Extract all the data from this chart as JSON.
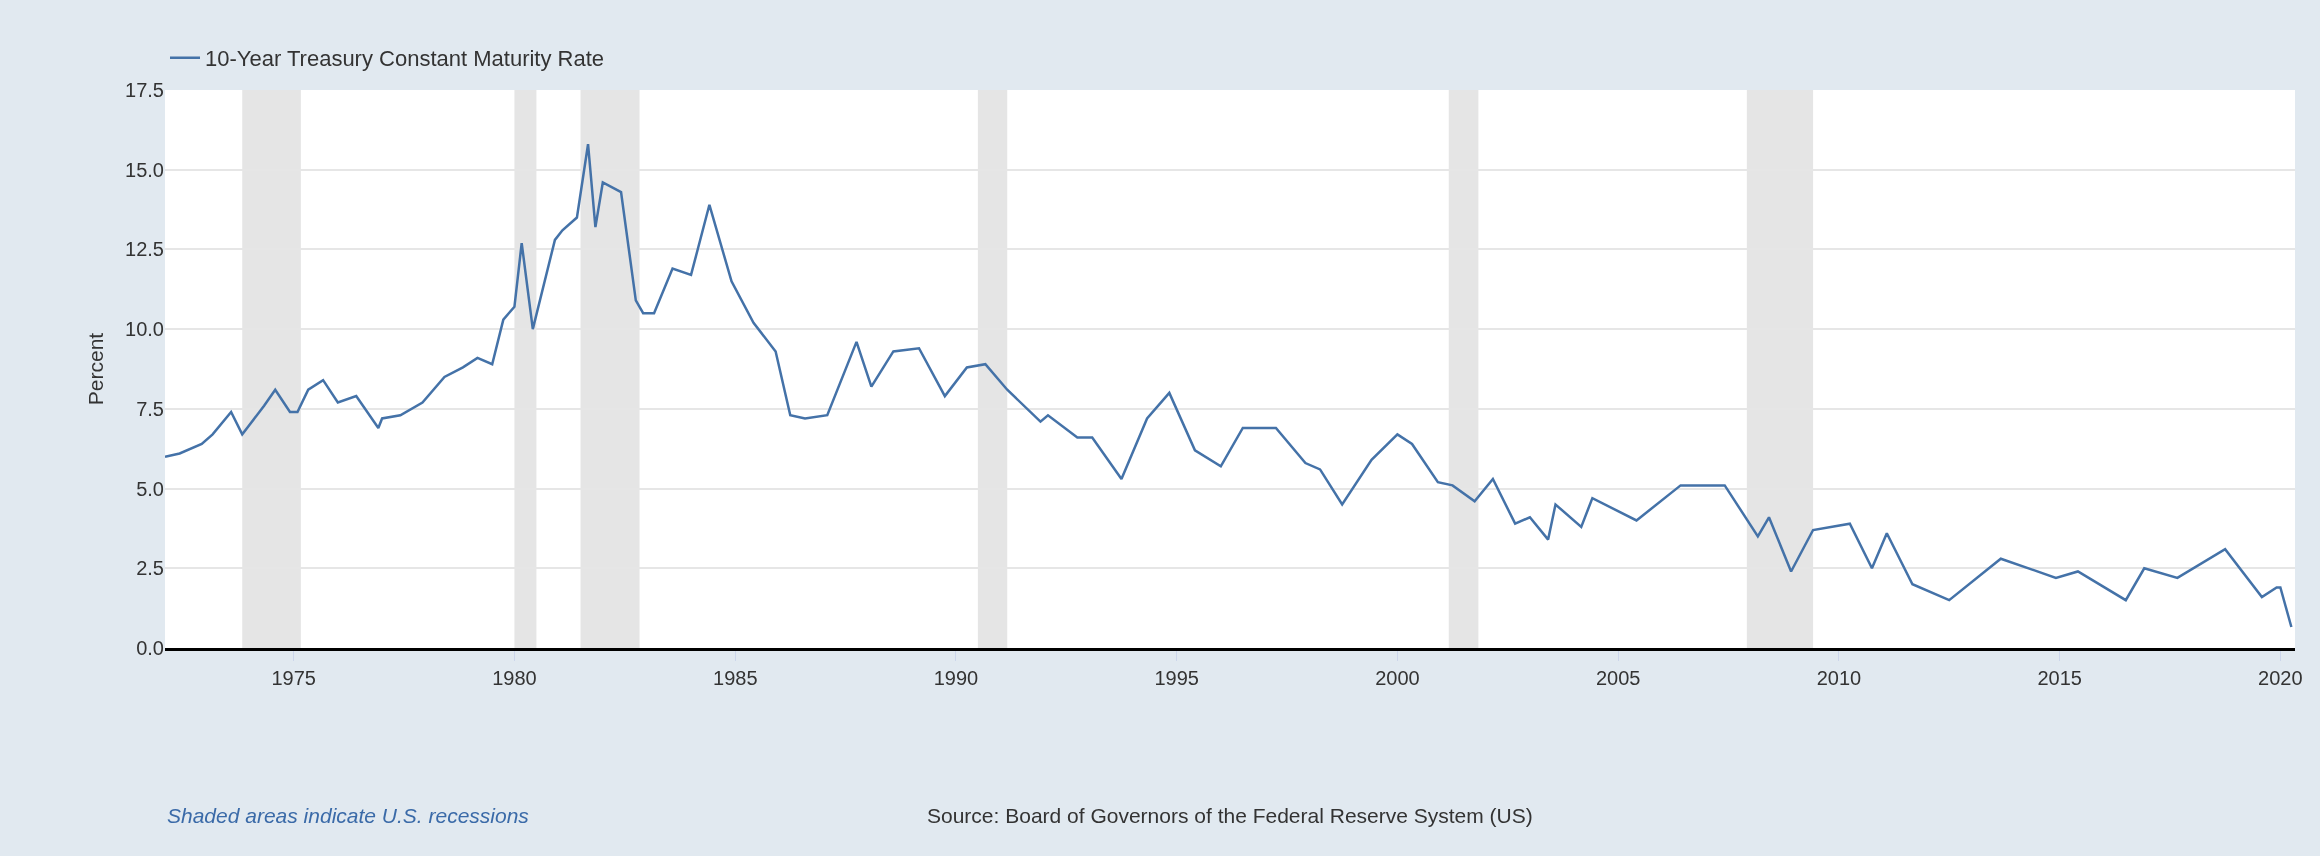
{
  "chart_data": {
    "type": "line",
    "ylabel": "Percent",
    "legend": "top left",
    "grid": "y",
    "marker": "none",
    "line_style": "solid",
    "x": [
      "1972-02",
      "1972-06",
      "1972-12",
      "1973-03",
      "1973-08",
      "1973-11",
      "1974-01",
      "1974-05",
      "1974-08",
      "1974-12",
      "1975-02",
      "1975-05",
      "1975-09",
      "1976-01",
      "1976-06",
      "1976-12",
      "1977-01",
      "1977-06",
      "1977-12",
      "1978-06",
      "1978-11",
      "1979-03",
      "1979-07",
      "1979-10",
      "1980-01",
      "1980-03",
      "1980-06",
      "1980-12",
      "1981-02",
      "1981-06",
      "1981-09",
      "1981-11",
      "1982-01",
      "1982-06",
      "1982-10",
      "1982-12",
      "1983-03",
      "1983-08",
      "1984-01",
      "1984-06",
      "1984-12",
      "1985-06",
      "1985-12",
      "1986-04",
      "1986-08",
      "1987-02",
      "1987-10",
      "1988-02",
      "1988-08",
      "1989-03",
      "1989-10",
      "1990-04",
      "1990-09",
      "1991-03",
      "1991-12",
      "1992-02",
      "1992-10",
      "1993-02",
      "1993-10",
      "1994-05",
      "1994-11",
      "1995-06",
      "1996-01",
      "1996-07",
      "1997-04",
      "1997-12",
      "1998-04",
      "1998-10",
      "1999-06",
      "2000-01",
      "2000-05",
      "2000-12",
      "2001-04",
      "2001-10",
      "2002-03",
      "2002-09",
      "2003-01",
      "2003-06",
      "2003-08",
      "2004-03",
      "2004-06",
      "2005-06",
      "2006-06",
      "2007-06",
      "2008-03",
      "2008-06",
      "2008-12",
      "2009-06",
      "2010-04",
      "2010-10",
      "2011-02",
      "2011-09",
      "2012-07",
      "2013-09",
      "2014-12",
      "2015-06",
      "2016-07",
      "2016-12",
      "2017-09",
      "2018-10",
      "2019-08",
      "2019-12",
      "2020-01",
      "2020-04"
    ],
    "series": [
      {
        "name": "10-Year Treasury Constant Maturity Rate",
        "color": "#4472a8",
        "values": [
          6.0,
          6.1,
          6.4,
          6.7,
          7.4,
          6.7,
          7.0,
          7.6,
          8.1,
          7.4,
          7.4,
          8.1,
          8.4,
          7.7,
          7.9,
          6.9,
          7.2,
          7.3,
          7.7,
          8.5,
          8.8,
          9.1,
          8.9,
          10.3,
          10.7,
          12.7,
          10.0,
          12.8,
          13.1,
          13.5,
          15.8,
          13.2,
          14.6,
          14.3,
          10.9,
          10.5,
          10.5,
          11.9,
          11.7,
          13.9,
          11.5,
          10.2,
          9.3,
          7.3,
          7.2,
          7.3,
          9.6,
          8.2,
          9.3,
          9.4,
          7.9,
          8.8,
          8.9,
          8.1,
          7.1,
          7.3,
          6.6,
          6.6,
          5.3,
          7.2,
          8.0,
          6.2,
          5.7,
          6.9,
          6.9,
          5.8,
          5.6,
          4.5,
          5.9,
          6.7,
          6.4,
          5.2,
          5.1,
          4.6,
          5.3,
          3.9,
          4.1,
          3.4,
          4.5,
          3.8,
          4.7,
          4.0,
          5.1,
          5.1,
          3.5,
          4.1,
          2.4,
          3.7,
          3.9,
          2.5,
          3.6,
          2.0,
          1.5,
          2.8,
          2.2,
          2.4,
          1.5,
          2.5,
          2.2,
          3.1,
          1.6,
          1.9,
          1.9,
          0.66
        ]
      }
    ],
    "xlim": [
      "1972-02",
      "2020-05"
    ],
    "xticks": [
      "1975",
      "1980",
      "1985",
      "1990",
      "1995",
      "2000",
      "2005",
      "2010",
      "2015",
      "2020"
    ],
    "ylim": [
      0,
      17.5
    ],
    "yticks": [
      {
        "value": 0,
        "label": "0.0"
      },
      2.5,
      {
        "value": 5,
        "label": "5.0"
      },
      7.5,
      {
        "value": 10,
        "label": "10.0"
      },
      12.5,
      {
        "value": 15,
        "label": "15.0"
      },
      17.5
    ],
    "bands": [
      {
        "axis": "x",
        "from": "1973-11",
        "to": "1975-03",
        "color": "#e5e5e5"
      },
      {
        "axis": "x",
        "from": "1980-01",
        "to": "1980-07",
        "color": "#e5e5e5"
      },
      {
        "axis": "x",
        "from": "1981-07",
        "to": "1982-11",
        "color": "#e5e5e5"
      },
      {
        "axis": "x",
        "from": "1990-07",
        "to": "1991-03",
        "color": "#e5e5e5"
      },
      {
        "axis": "x",
        "from": "2001-03",
        "to": "2001-11",
        "color": "#e5e5e5"
      },
      {
        "axis": "x",
        "from": "2007-12",
        "to": "2009-06",
        "color": "#e5e5e5"
      }
    ],
    "annotations": [
      "Shaded areas indicate U.S. recessions",
      "Source: Board of Governors of the Federal Reserve System (US)"
    ]
  }
}
